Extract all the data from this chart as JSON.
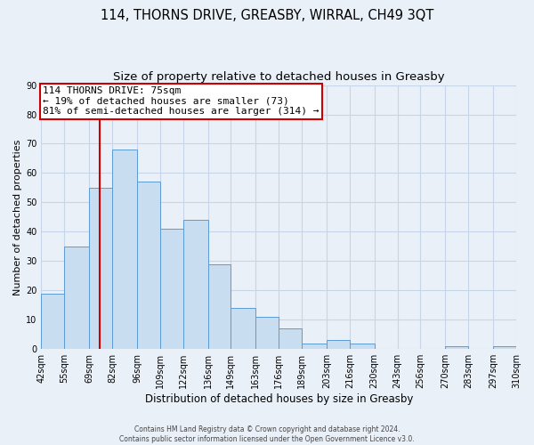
{
  "title": "114, THORNS DRIVE, GREASBY, WIRRAL, CH49 3QT",
  "subtitle": "Size of property relative to detached houses in Greasby",
  "xlabel": "Distribution of detached houses by size in Greasby",
  "ylabel": "Number of detached properties",
  "bin_edges": [
    42,
    55,
    69,
    82,
    96,
    109,
    122,
    136,
    149,
    163,
    176,
    189,
    203,
    216,
    230,
    243,
    256,
    270,
    283,
    297,
    310
  ],
  "bar_heights": [
    19,
    35,
    55,
    68,
    57,
    41,
    44,
    29,
    14,
    11,
    7,
    2,
    3,
    2,
    0,
    0,
    0,
    1,
    0,
    1
  ],
  "bar_color": "#c9ddf0",
  "bar_edge_color": "#5b9bd5",
  "vline_x": 75,
  "vline_color": "#cc0000",
  "annotation_text": "114 THORNS DRIVE: 75sqm\n← 19% of detached houses are smaller (73)\n81% of semi-detached houses are larger (314) →",
  "annotation_box_facecolor": "#ffffff",
  "annotation_box_edgecolor": "#cc0000",
  "ylim": [
    0,
    90
  ],
  "yticks": [
    0,
    10,
    20,
    30,
    40,
    50,
    60,
    70,
    80,
    90
  ],
  "grid_color": "#c8d4e8",
  "background_color": "#eaf0f8",
  "footer_line1": "Contains HM Land Registry data © Crown copyright and database right 2024.",
  "footer_line2": "Contains public sector information licensed under the Open Government Licence v3.0.",
  "title_fontsize": 10.5,
  "subtitle_fontsize": 9.5,
  "annotation_fontsize": 8,
  "ylabel_fontsize": 8,
  "xlabel_fontsize": 8.5,
  "tick_fontsize": 7,
  "footer_fontsize": 5.5
}
